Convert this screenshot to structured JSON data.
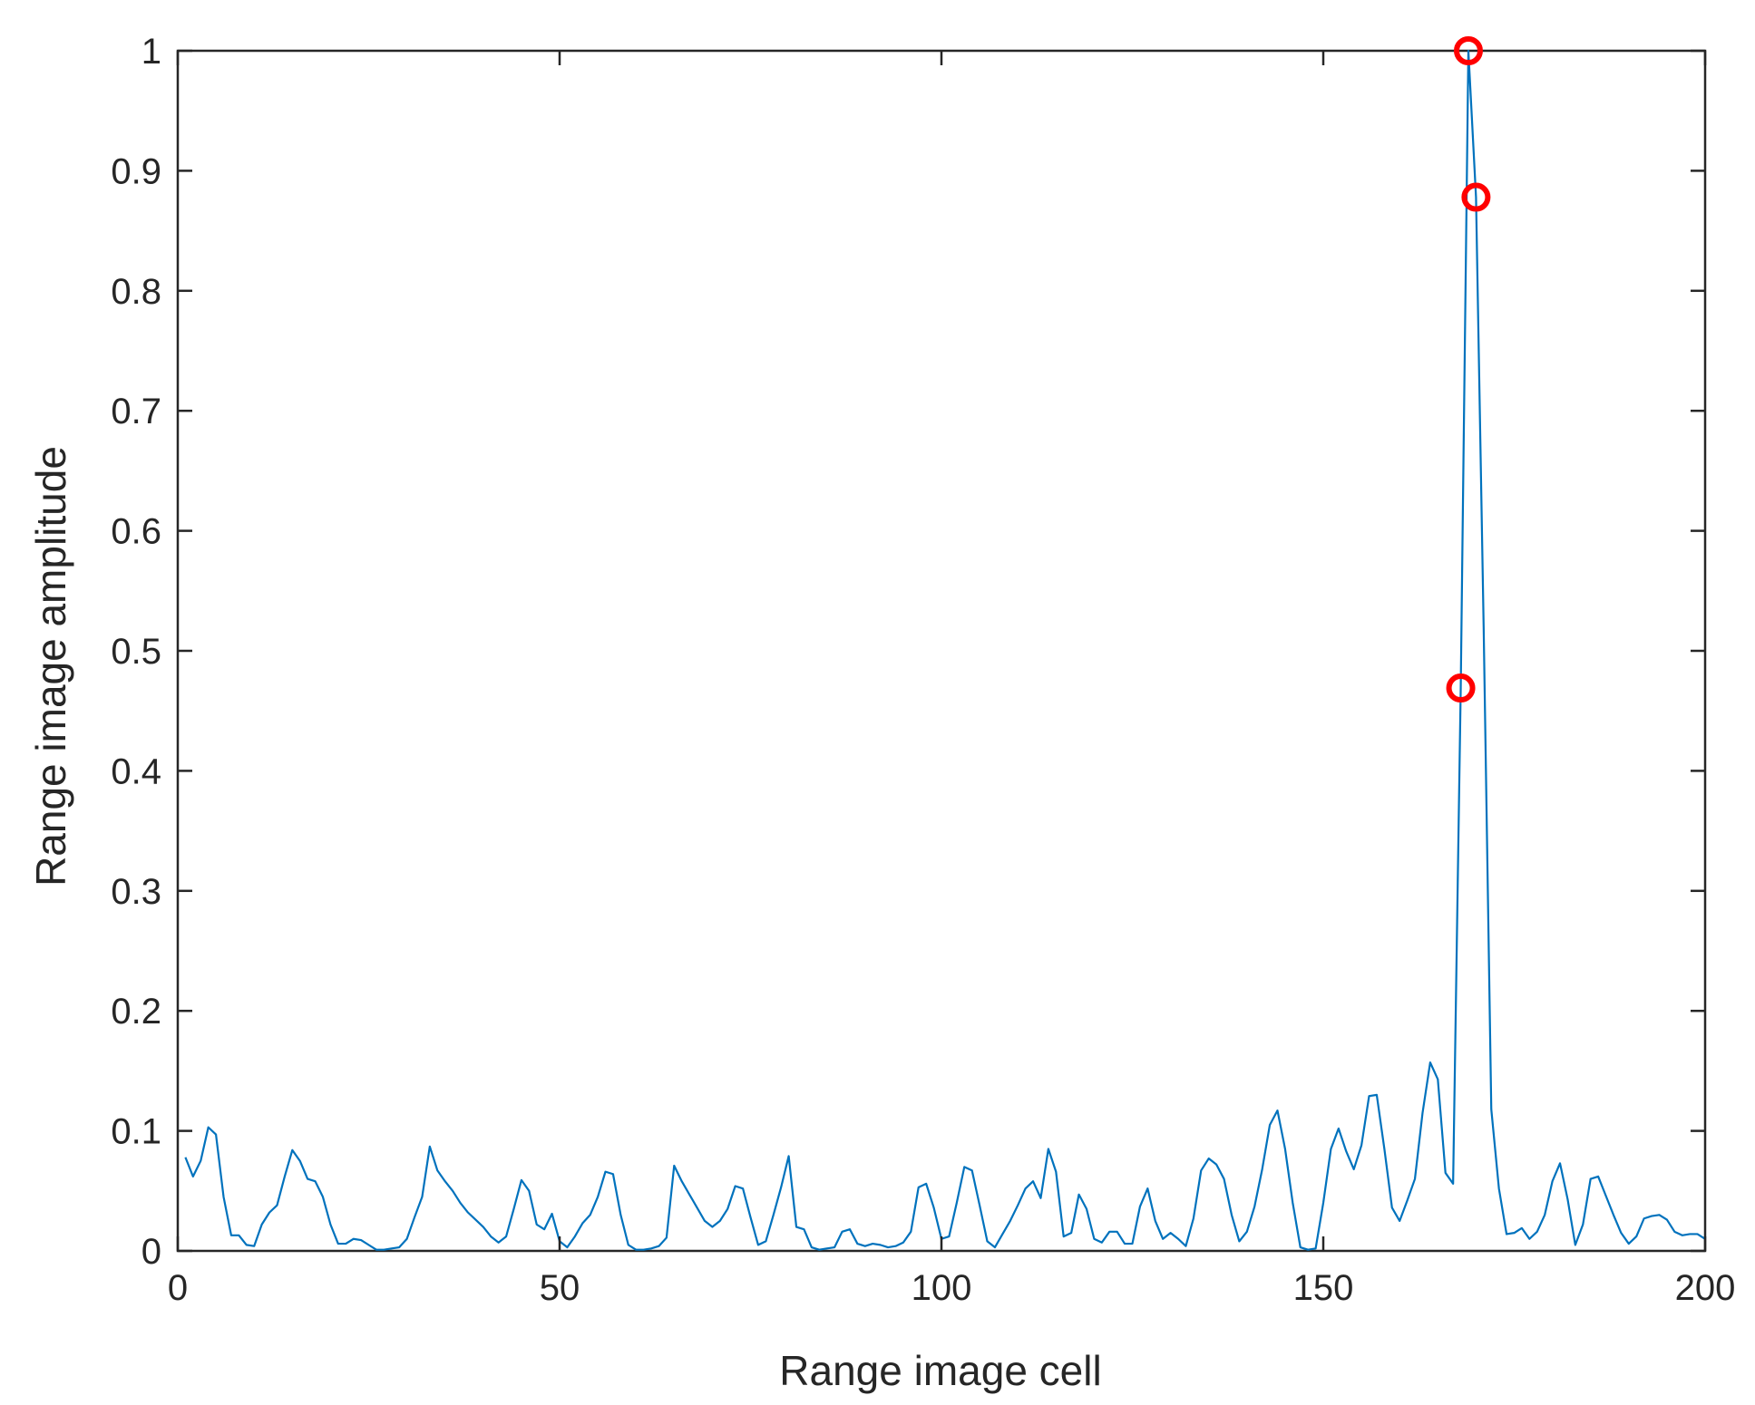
{
  "chart_data": {
    "type": "line",
    "title": "",
    "xlabel": "Range image cell",
    "ylabel": "Range image amplitude",
    "xlim": [
      0,
      200
    ],
    "ylim": [
      0,
      1
    ],
    "xticks": [
      0,
      50,
      100,
      150,
      200
    ],
    "xtick_labels": [
      "0",
      "50",
      "100",
      "150",
      "200"
    ],
    "yticks": [
      0,
      0.1,
      0.2,
      0.3,
      0.4,
      0.5,
      0.6,
      0.7,
      0.8,
      0.9,
      1
    ],
    "ytick_labels": [
      "0",
      "0.1",
      "0.2",
      "0.3",
      "0.4",
      "0.5",
      "0.6",
      "0.7",
      "0.8",
      "0.9",
      "1"
    ],
    "grid": false,
    "series": [
      {
        "color": "#0072BD",
        "x": [
          1,
          2,
          3,
          4,
          5,
          6,
          7,
          8,
          9,
          10,
          11,
          12,
          13,
          14,
          15,
          16,
          17,
          18,
          19,
          20,
          21,
          22,
          23,
          24,
          25,
          26,
          27,
          28,
          29,
          30,
          31,
          32,
          33,
          34,
          35,
          36,
          37,
          38,
          39,
          40,
          41,
          42,
          43,
          44,
          45,
          46,
          47,
          48,
          49,
          50,
          51,
          52,
          53,
          54,
          55,
          56,
          57,
          58,
          59,
          60,
          61,
          62,
          63,
          64,
          65,
          66,
          67,
          68,
          69,
          70,
          71,
          72,
          73,
          74,
          75,
          76,
          77,
          78,
          79,
          80,
          81,
          82,
          83,
          84,
          85,
          86,
          87,
          88,
          89,
          90,
          91,
          92,
          93,
          94,
          95,
          96,
          97,
          98,
          99,
          100,
          101,
          102,
          103,
          104,
          105,
          106,
          107,
          108,
          109,
          110,
          111,
          112,
          113,
          114,
          115,
          116,
          117,
          118,
          119,
          120,
          121,
          122,
          123,
          124,
          125,
          126,
          127,
          128,
          129,
          130,
          131,
          132,
          133,
          134,
          135,
          136,
          137,
          138,
          139,
          140,
          141,
          142,
          143,
          144,
          145,
          146,
          147,
          148,
          149,
          150,
          151,
          152,
          153,
          154,
          155,
          156,
          157,
          158,
          159,
          160,
          161,
          162,
          163,
          164,
          165,
          166,
          167,
          168,
          169,
          170,
          171,
          172,
          173,
          174,
          175,
          176,
          177,
          178,
          179,
          180,
          181,
          182,
          183,
          184,
          185,
          186,
          187,
          188,
          189,
          190,
          191,
          192,
          193,
          194,
          195,
          196,
          197,
          198,
          199,
          200
        ],
        "y": [
          0.078,
          0.062,
          0.075,
          0.103,
          0.097,
          0.045,
          0.013,
          0.013,
          0.005,
          0.004,
          0.022,
          0.032,
          0.038,
          0.062,
          0.084,
          0.075,
          0.06,
          0.058,
          0.045,
          0.022,
          0.006,
          0.006,
          0.01,
          0.009,
          0.005,
          0.001,
          0.001,
          0.002,
          0.003,
          0.01,
          0.028,
          0.045,
          0.087,
          0.067,
          0.058,
          0.05,
          0.04,
          0.032,
          0.026,
          0.02,
          0.012,
          0.007,
          0.012,
          0.035,
          0.059,
          0.05,
          0.022,
          0.018,
          0.031,
          0.008,
          0.003,
          0.012,
          0.023,
          0.03,
          0.045,
          0.066,
          0.064,
          0.03,
          0.005,
          0.001,
          0.001,
          0.002,
          0.004,
          0.011,
          0.071,
          0.058,
          0.047,
          0.036,
          0.025,
          0.02,
          0.025,
          0.035,
          0.054,
          0.052,
          0.028,
          0.005,
          0.008,
          0.03,
          0.053,
          0.079,
          0.02,
          0.018,
          0.003,
          0.001,
          0.002,
          0.003,
          0.016,
          0.018,
          0.006,
          0.004,
          0.006,
          0.005,
          0.003,
          0.004,
          0.007,
          0.016,
          0.053,
          0.056,
          0.036,
          0.01,
          0.012,
          0.04,
          0.07,
          0.067,
          0.038,
          0.008,
          0.003,
          0.014,
          0.025,
          0.038,
          0.052,
          0.058,
          0.044,
          0.085,
          0.066,
          0.012,
          0.015,
          0.047,
          0.035,
          0.01,
          0.007,
          0.016,
          0.016,
          0.006,
          0.006,
          0.037,
          0.052,
          0.025,
          0.01,
          0.015,
          0.01,
          0.004,
          0.027,
          0.067,
          0.077,
          0.072,
          0.06,
          0.03,
          0.008,
          0.016,
          0.037,
          0.068,
          0.105,
          0.117,
          0.085,
          0.04,
          0.003,
          0.001,
          0.002,
          0.04,
          0.085,
          0.102,
          0.083,
          0.068,
          0.088,
          0.129,
          0.13,
          0.085,
          0.036,
          0.025,
          0.042,
          0.06,
          0.115,
          0.157,
          0.143,
          0.065,
          0.056,
          0.469,
          1.0,
          0.878,
          0.52,
          0.118,
          0.052,
          0.014,
          0.015,
          0.019,
          0.01,
          0.016,
          0.03,
          0.058,
          0.073,
          0.043,
          0.005,
          0.022,
          0.06,
          0.062,
          0.046,
          0.03,
          0.015,
          0.006,
          0.012,
          0.027,
          0.029,
          0.03,
          0.026,
          0.016,
          0.013,
          0.014,
          0.014,
          0.01
        ]
      }
    ],
    "markers": {
      "color": "#FF0000",
      "x": [
        168,
        169,
        170
      ],
      "y": [
        0.469,
        1.0,
        0.878
      ]
    }
  }
}
